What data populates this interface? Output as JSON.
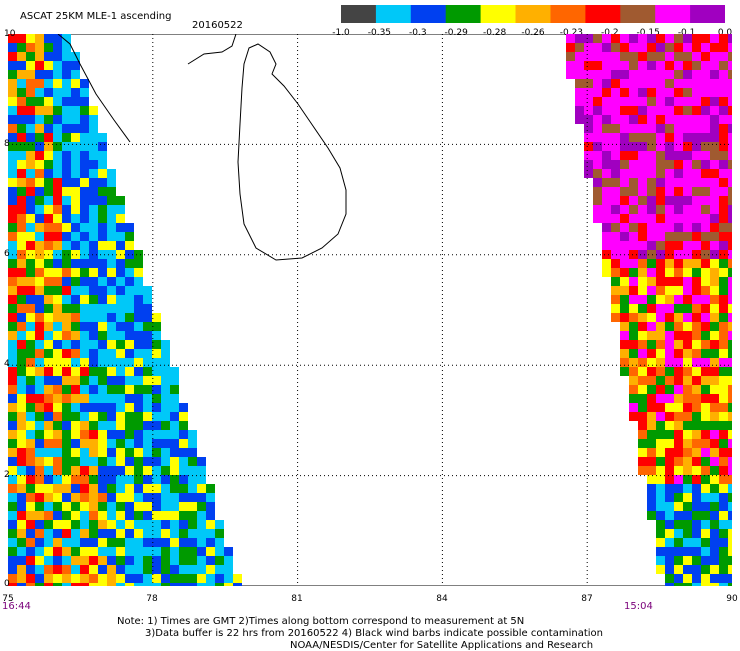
{
  "header": {
    "title": "ASCAT 25KM MLE-1 ascending",
    "date": "20160522"
  },
  "colorbar": {
    "labels": [
      "-1.0",
      "-0.35",
      "-0.3",
      "-0.29",
      "-0.28",
      "-0.26",
      "-0.23",
      "-0.2",
      "-0.15",
      "-0.1",
      "0.0"
    ],
    "colors": [
      "#444444",
      "#00c8f8",
      "#0040f0",
      "#009a00",
      "#ffff00",
      "#ffb000",
      "#ff6600",
      "#ff0000",
      "#a05a30",
      "#ff00ff",
      "#a000c0"
    ]
  },
  "axes": {
    "lat_labels": [
      "10",
      "8",
      "6",
      "4",
      "2",
      "0"
    ],
    "lon_labels": [
      "75",
      "78",
      "81",
      "84",
      "87",
      "90"
    ],
    "lat_range": [
      0,
      10
    ],
    "lon_range": [
      75,
      90
    ],
    "grid": true
  },
  "times": {
    "left": "16:44",
    "right": "15:04"
  },
  "notes": [
    "Note: 1) Times are GMT 2)Times along bottom correspond to measurement at 5N",
    "3)Data buffer is 22 hrs from 20160522 4) Black wind barbs indicate possible contamination",
    "NOAA/NESDIS/Center for Satellite Applications and Research"
  ]
}
